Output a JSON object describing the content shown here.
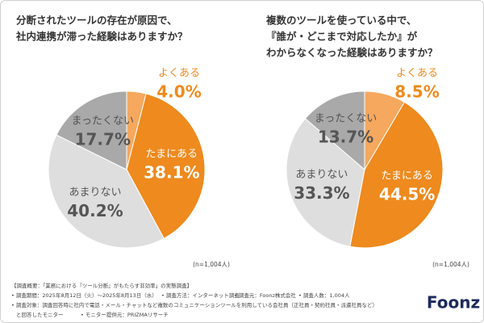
{
  "chart_data": [
    {
      "type": "pie",
      "title": [
        "分断されたツールの存在が原因で、",
        "社内連携が滞った経験はありますか？"
      ],
      "categories": [
        "よくある",
        "たまにある",
        "あまりない",
        "まったくない"
      ],
      "values": [
        4.0,
        38.1,
        40.2,
        17.7
      ],
      "value_labels": [
        "4.0%",
        "38.1%",
        "40.2%",
        "17.7%"
      ],
      "colors": [
        "#f5a85e",
        "#ee8a1e",
        "#dedede",
        "#a9a9a9"
      ],
      "label_colors": [
        "#ee8a1e",
        "#ffffff",
        "#555555",
        "#555555"
      ],
      "note": "(n=1,004人)"
    },
    {
      "type": "pie",
      "title": [
        "複数のツールを使っている中で、",
        "『誰が・どこまで対応したか』が",
        "わからなくなった経験はありますか？"
      ],
      "categories": [
        "よくある",
        "たまにある",
        "あまりない",
        "まったくない"
      ],
      "values": [
        8.5,
        44.5,
        33.3,
        13.7
      ],
      "value_labels": [
        "8.5%",
        "44.5%",
        "33.3%",
        "13.7%"
      ],
      "colors": [
        "#f5a85e",
        "#ee8a1e",
        "#dedede",
        "#a9a9a9"
      ],
      "label_colors": [
        "#ee8a1e",
        "#ffffff",
        "#555555",
        "#555555"
      ],
      "note": "(n=1,004人)"
    }
  ],
  "footer": {
    "heading": "【調査概要：「業務における『ツール分断』がもたらす非効率」の実態調査】",
    "items": [
      "• 調査期間：2025年8月12日（火）〜2025年8月13日（水）",
      "• 調査方法：インターネット調査",
      "• 調査元：Foonz株式会社",
      "• 調査人数：1,004人"
    ],
    "target": "• 調査対象：調査回答時に社内で電話・メール・チャットなど複数のコミュニケーションツールを利用している会社員（正社員・契約社員・派遣社員など）",
    "target_cont": "と回答したモニター",
    "provider": "• モニター提供元：PRIZMAリサーチ"
  },
  "logo": "Foonz"
}
